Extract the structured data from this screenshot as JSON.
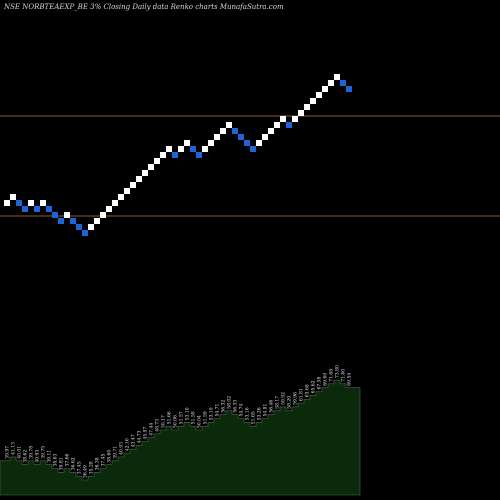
{
  "header": {
    "title": "NSE NORBTEAEXP_BE 3% Closing Daily data Renko charts MunafaSutra.com"
  },
  "colors": {
    "background": "#000000",
    "up_brick": "#ffffff",
    "down_brick": "#1e64d8",
    "level_line": "#c8782c",
    "volume_fill": "#0b2a0b",
    "volume_stroke": "#4a6a4a"
  },
  "chart_data": {
    "type": "renko",
    "title": "NSE NORBTEAEXP_BE 3% Closing Daily data Renko charts MunafaSutra.com",
    "brick_size": "3%",
    "directions": [
      "up",
      "up",
      "down",
      "down",
      "up",
      "down",
      "up",
      "down",
      "down",
      "down",
      "up",
      "down",
      "down",
      "down",
      "up",
      "up",
      "up",
      "up",
      "up",
      "up",
      "up",
      "up",
      "up",
      "up",
      "up",
      "up",
      "up",
      "up",
      "down",
      "up",
      "up",
      "down",
      "down",
      "up",
      "up",
      "up",
      "up",
      "up",
      "down",
      "down",
      "down",
      "down",
      "up",
      "up",
      "up",
      "up",
      "up",
      "down",
      "up",
      "up",
      "up",
      "up",
      "up",
      "up",
      "up",
      "up",
      "down",
      "down"
    ],
    "levels": [
      "upper",
      "lower"
    ],
    "volume_labels": [
      "39.97",
      "41.13",
      "40.01",
      "38.62",
      "39.78",
      "40.93",
      "39.75",
      "39.11",
      "38.63",
      "39.81",
      "37.66",
      "36.62",
      "37.45",
      "36.49",
      "35.28",
      "36.38",
      "37.45",
      "38.60",
      "39.71",
      "40.93",
      "42.16",
      "43.47",
      "44.73",
      "45.97",
      "47.44",
      "48.73",
      "50.17",
      "51.66",
      "50.06",
      "51.57",
      "53.10",
      "51.58",
      "50.04",
      "51.59",
      "53.10",
      "54.71",
      "56.32",
      "58.02",
      "56.33",
      "54.74",
      "53.16",
      "51.65",
      "53.26",
      "54.81",
      "56.46",
      "58.17",
      "59.92",
      "58.20",
      "59.96",
      "61.81",
      "63.68",
      "65.62",
      "67.58",
      "69.60",
      "71.68",
      "73.80",
      "71.60",
      "69.54"
    ]
  }
}
